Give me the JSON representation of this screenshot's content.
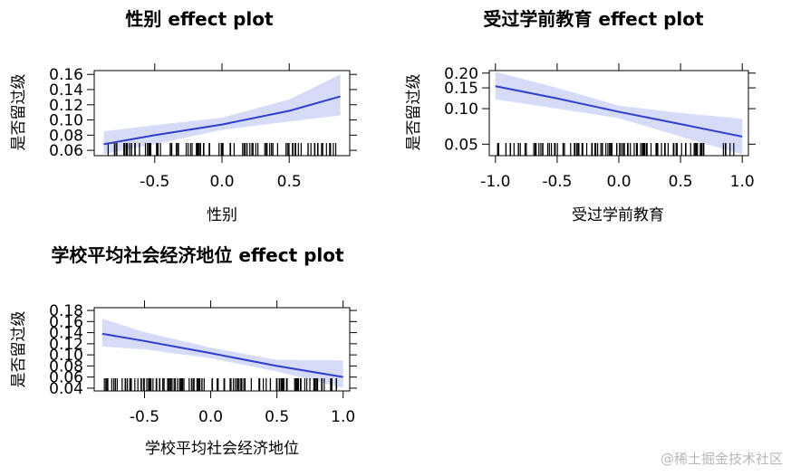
{
  "watermark": "@稀土掘金技术社区",
  "chart_data": [
    {
      "type": "line",
      "title": "性别 effect plot",
      "xlabel": "性别",
      "ylabel": "是否留过级",
      "xlim": [
        -0.95,
        0.95
      ],
      "ylim": [
        0.053,
        0.165
      ],
      "xticks": [
        -0.5,
        0.0,
        0.5
      ],
      "xtick_labels": [
        "-0.5",
        "0.0",
        "0.5"
      ],
      "yticks": [
        0.06,
        0.08,
        0.1,
        0.12,
        0.14,
        0.16
      ],
      "ytick_labels": [
        "0.06",
        "0.08",
        "0.10",
        "0.12",
        "0.14",
        "0.16"
      ],
      "ytick_rows": [
        [
          "0.16",
          "0.14",
          "0.12",
          "0.10",
          "0.08",
          "0.06"
        ]
      ],
      "grid": false,
      "colors": {
        "line": "#2f3fcc",
        "band": "#d6dcf7"
      },
      "series": [
        {
          "x": [
            -0.88,
            -0.5,
            0.0,
            0.5,
            0.88
          ],
          "y": [
            0.068,
            0.08,
            0.094,
            0.112,
            0.131
          ],
          "lower": [
            0.055,
            0.068,
            0.087,
            0.098,
            0.106
          ],
          "upper": [
            0.085,
            0.093,
            0.103,
            0.127,
            0.16
          ]
        }
      ],
      "rug": {
        "x_min": -0.85,
        "x_max": 0.85,
        "count": 100
      }
    },
    {
      "type": "line",
      "title": "受过学前教育 effect plot",
      "xlabel": "受过学前教育",
      "ylabel": "是否留过级",
      "xlim": [
        -1.05,
        1.05
      ],
      "ylim": [
        0.04,
        0.21
      ],
      "yscale": "log",
      "xticks": [
        -1.0,
        -0.5,
        0.0,
        0.5,
        1.0
      ],
      "xtick_labels": [
        "-1.0",
        "-0.5",
        "0.0",
        "0.5",
        "1.0"
      ],
      "yticks": [
        0.05,
        0.1,
        0.15,
        0.2
      ],
      "ytick_labels": [
        "0.05",
        "0.10",
        "0.15",
        "0.20"
      ],
      "ytick_rows": [
        [
          "0.20",
          "0.15",
          "0.10",
          "0.05"
        ]
      ],
      "grid": false,
      "colors": {
        "line": "#2f3fcc",
        "band": "#d6dcf7"
      },
      "series": [
        {
          "x": [
            -1.0,
            -0.5,
            0.0,
            0.5,
            1.0
          ],
          "y": [
            0.155,
            0.122,
            0.094,
            0.074,
            0.058
          ],
          "lower": [
            0.12,
            0.1,
            0.083,
            0.058,
            0.041
          ],
          "upper": [
            0.205,
            0.15,
            0.106,
            0.092,
            0.082
          ]
        }
      ],
      "rug": {
        "x_min": -1.0,
        "x_max": 1.0,
        "count": 110
      }
    },
    {
      "type": "line",
      "title": "学校平均社会经济地位 effect plot",
      "xlabel": "学校平均社会经济地位",
      "ylabel": "是否留过级",
      "xlim": [
        -0.88,
        1.05
      ],
      "ylim": [
        0.035,
        0.185
      ],
      "xticks": [
        -0.5,
        0.0,
        0.5,
        1.0
      ],
      "xtick_labels": [
        "-0.5",
        "0.0",
        "0.5",
        "1.0"
      ],
      "yticks": [
        0.04,
        0.06,
        0.08,
        0.1,
        0.12,
        0.14,
        0.16,
        0.18
      ],
      "ytick_labels": [
        "0.04",
        "0.06",
        "0.08",
        "0.10",
        "0.12",
        "0.14",
        "0.16",
        "0.18"
      ],
      "ytick_rows": [
        [
          "0.18",
          "0.14",
          "0.10",
          "0.06"
        ],
        [
          "0.16",
          "0.12",
          "0.08",
          "0.04"
        ]
      ],
      "grid": false,
      "colors": {
        "line": "#2f3fcc",
        "band": "#d6dcf7"
      },
      "series": [
        {
          "x": [
            -0.82,
            -0.5,
            0.0,
            0.5,
            1.0
          ],
          "y": [
            0.138,
            0.125,
            0.103,
            0.08,
            0.06
          ],
          "lower": [
            0.115,
            0.11,
            0.094,
            0.07,
            0.04
          ],
          "upper": [
            0.165,
            0.141,
            0.113,
            0.091,
            0.09
          ]
        }
      ],
      "rug": {
        "x_min": -0.82,
        "x_max": 1.0,
        "count": 130
      }
    }
  ]
}
